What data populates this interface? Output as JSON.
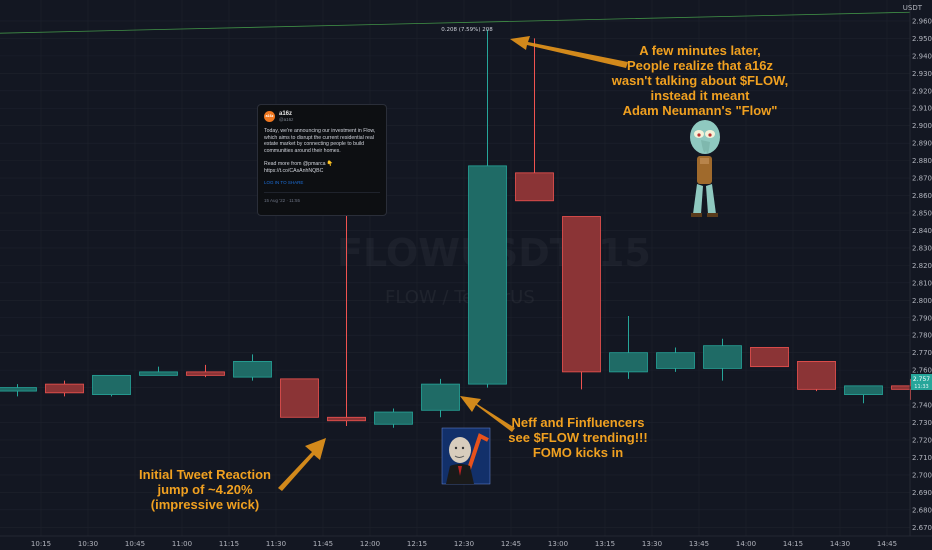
{
  "chart_data": {
    "type": "candlestick",
    "title": "FLOWUSDT, 15",
    "subtitle": "FLOW / TetherUS",
    "currency": "USDT",
    "ylim": [
      2.665,
      2.972
    ],
    "yticks": [
      2.96,
      2.95,
      2.94,
      2.93,
      2.92,
      2.91,
      2.9,
      2.89,
      2.88,
      2.87,
      2.86,
      2.85,
      2.84,
      2.83,
      2.82,
      2.81,
      2.8,
      2.79,
      2.78,
      2.77,
      2.76,
      2.75,
      2.74,
      2.73,
      2.72,
      2.71,
      2.7,
      2.69,
      2.68,
      2.67
    ],
    "xticks": [
      "10:15",
      "10:30",
      "10:45",
      "11:00",
      "11:15",
      "11:30",
      "11:45",
      "12:00",
      "12:15",
      "12:30",
      "12:45",
      "13:00",
      "13:15",
      "13:30",
      "13:45",
      "14:00",
      "14:15",
      "14:30",
      "14:45"
    ],
    "candles": [
      {
        "t": "10:15",
        "o": 2.748,
        "h": 2.752,
        "l": 2.745,
        "c": 2.75
      },
      {
        "t": "10:30",
        "o": 2.752,
        "h": 2.754,
        "l": 2.745,
        "c": 2.747
      },
      {
        "t": "10:45",
        "o": 2.746,
        "h": 2.757,
        "l": 2.745,
        "c": 2.757
      },
      {
        "t": "11:00",
        "o": 2.757,
        "h": 2.762,
        "l": 2.757,
        "c": 2.759
      },
      {
        "t": "11:15",
        "o": 2.759,
        "h": 2.763,
        "l": 2.756,
        "c": 2.757
      },
      {
        "t": "11:30",
        "o": 2.756,
        "h": 2.769,
        "l": 2.754,
        "c": 2.765
      },
      {
        "t": "11:45",
        "o": 2.755,
        "h": 2.755,
        "l": 2.733,
        "c": 2.733
      },
      {
        "t": "12:00",
        "o": 2.733,
        "h": 2.865,
        "l": 2.728,
        "c": 2.731
      },
      {
        "t": "12:15",
        "o": 2.729,
        "h": 2.738,
        "l": 2.727,
        "c": 2.736
      },
      {
        "t": "12:30",
        "o": 2.737,
        "h": 2.755,
        "l": 2.733,
        "c": 2.752
      },
      {
        "t": "12:45",
        "o": 2.752,
        "h": 2.955,
        "l": 2.75,
        "c": 2.877
      },
      {
        "t": "13:00",
        "o": 2.873,
        "h": 2.95,
        "l": 2.857,
        "c": 2.857
      },
      {
        "t": "13:15",
        "o": 2.848,
        "h": 2.848,
        "l": 2.749,
        "c": 2.759
      },
      {
        "t": "13:30",
        "o": 2.759,
        "h": 2.791,
        "l": 2.755,
        "c": 2.77
      },
      {
        "t": "13:45",
        "o": 2.761,
        "h": 2.773,
        "l": 2.759,
        "c": 2.77
      },
      {
        "t": "14:00",
        "o": 2.761,
        "h": 2.778,
        "l": 2.754,
        "c": 2.774
      },
      {
        "t": "14:15",
        "o": 2.773,
        "h": 2.773,
        "l": 2.762,
        "c": 2.762
      },
      {
        "t": "14:30",
        "o": 2.765,
        "h": 2.765,
        "l": 2.748,
        "c": 2.749
      },
      {
        "t": "14:45",
        "o": 2.746,
        "h": 2.751,
        "l": 2.741,
        "c": 2.751
      },
      {
        "t": "15:00",
        "o": 2.751,
        "h": 2.755,
        "l": 2.743,
        "c": 2.749
      }
    ],
    "current_price": "2.757",
    "current_time": "11:33",
    "resistance_line": {
      "y_start": 2.953,
      "y_end": 2.965
    },
    "peak_label": "0.208 (7.59%) 208",
    "colors": {
      "up": "#26a69a",
      "down": "#ef5350",
      "up_fill": "#1f6b66",
      "down_fill": "#8b3436",
      "accent": "#f0a020"
    },
    "annotations": [
      {
        "name": "annotation-initial-reaction",
        "lines": [
          "Initial Tweet Reaction",
          "jump of ~4.20%",
          "(impressive wick)"
        ]
      },
      {
        "name": "annotation-fomo",
        "lines": [
          "Neff and Finfluencers",
          "see $FLOW trending!!!",
          "FOMO kicks in"
        ]
      },
      {
        "name": "annotation-realization",
        "lines": [
          "A few minutes later,",
          "People realize that a16z",
          "wasn't talking about $FLOW,",
          "instead it meant",
          "Adam Neumann's \"Flow\""
        ]
      }
    ]
  },
  "tweet": {
    "logo": "a16z",
    "name": "a16z",
    "handle": "@a16z",
    "body": "Today, we're announcing our investment in Flow, which aims to disrupt the current residential real estate market by connecting people to build communities around their homes.\n\nRead more from @pmarca 👇 https://t.co/CAsAnhNQBC",
    "link": "LOG IN TO SHARE",
    "date": "15 Aug '22 · 11:55"
  }
}
